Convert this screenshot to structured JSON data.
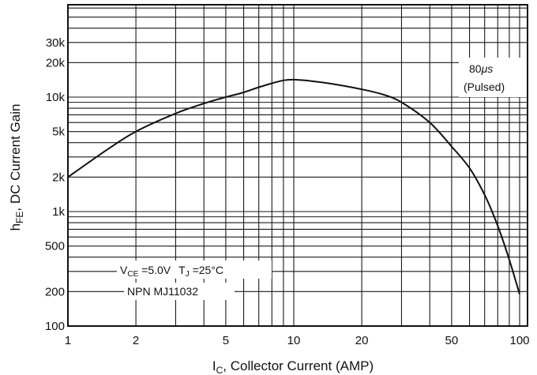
{
  "chart_data": {
    "type": "line",
    "xlabel_main": "I",
    "xlabel_sub": "C",
    "xlabel_rest": ", Collector Current (AMP)",
    "ylabel_main": "h",
    "ylabel_sub": "FE",
    "ylabel_rest": ", DC Current Gain",
    "x_scale": "log",
    "y_scale": "log",
    "xlim": [
      1,
      100
    ],
    "ylim": [
      100,
      50000
    ],
    "grid": true,
    "x_ticks": [
      {
        "value": 1,
        "label": "1"
      },
      {
        "value": 2,
        "label": "2"
      },
      {
        "value": 5,
        "label": "5"
      },
      {
        "value": 10,
        "label": "10"
      },
      {
        "value": 20,
        "label": "20"
      },
      {
        "value": 50,
        "label": "50"
      },
      {
        "value": 100,
        "label": "100"
      }
    ],
    "y_ticks": [
      {
        "value": 100,
        "label": "100"
      },
      {
        "value": 200,
        "label": "200"
      },
      {
        "value": 500,
        "label": "500"
      },
      {
        "value": 1000,
        "label": "1k"
      },
      {
        "value": 2000,
        "label": "2k"
      },
      {
        "value": 5000,
        "label": "5k"
      },
      {
        "value": 10000,
        "label": "10k"
      },
      {
        "value": 20000,
        "label": "20k"
      },
      {
        "value": 30000,
        "label": "30k"
      }
    ],
    "series": [
      {
        "x": [
          1,
          1.5,
          2,
          3,
          4,
          5,
          6,
          7,
          8,
          9,
          10,
          12,
          15,
          20,
          25,
          30,
          40,
          50,
          60,
          70,
          80,
          90,
          100
        ],
        "y": [
          2000,
          3500,
          5000,
          7200,
          8800,
          10000,
          11000,
          12200,
          13200,
          14000,
          14200,
          13800,
          13000,
          11700,
          10500,
          9000,
          6000,
          3700,
          2400,
          1400,
          750,
          380,
          190
        ]
      }
    ],
    "annotations": {
      "pulse_line1_num": "80",
      "pulse_line1_unit": "μs",
      "pulse_line2": "(Pulsed)",
      "cond_v": "V",
      "cond_v_sub": "CE",
      "cond_v_rest": " =5.0V",
      "cond_t": "T",
      "cond_t_sub": "J",
      "cond_t_rest": " =25°C",
      "device": "NPN MJ11032"
    }
  }
}
